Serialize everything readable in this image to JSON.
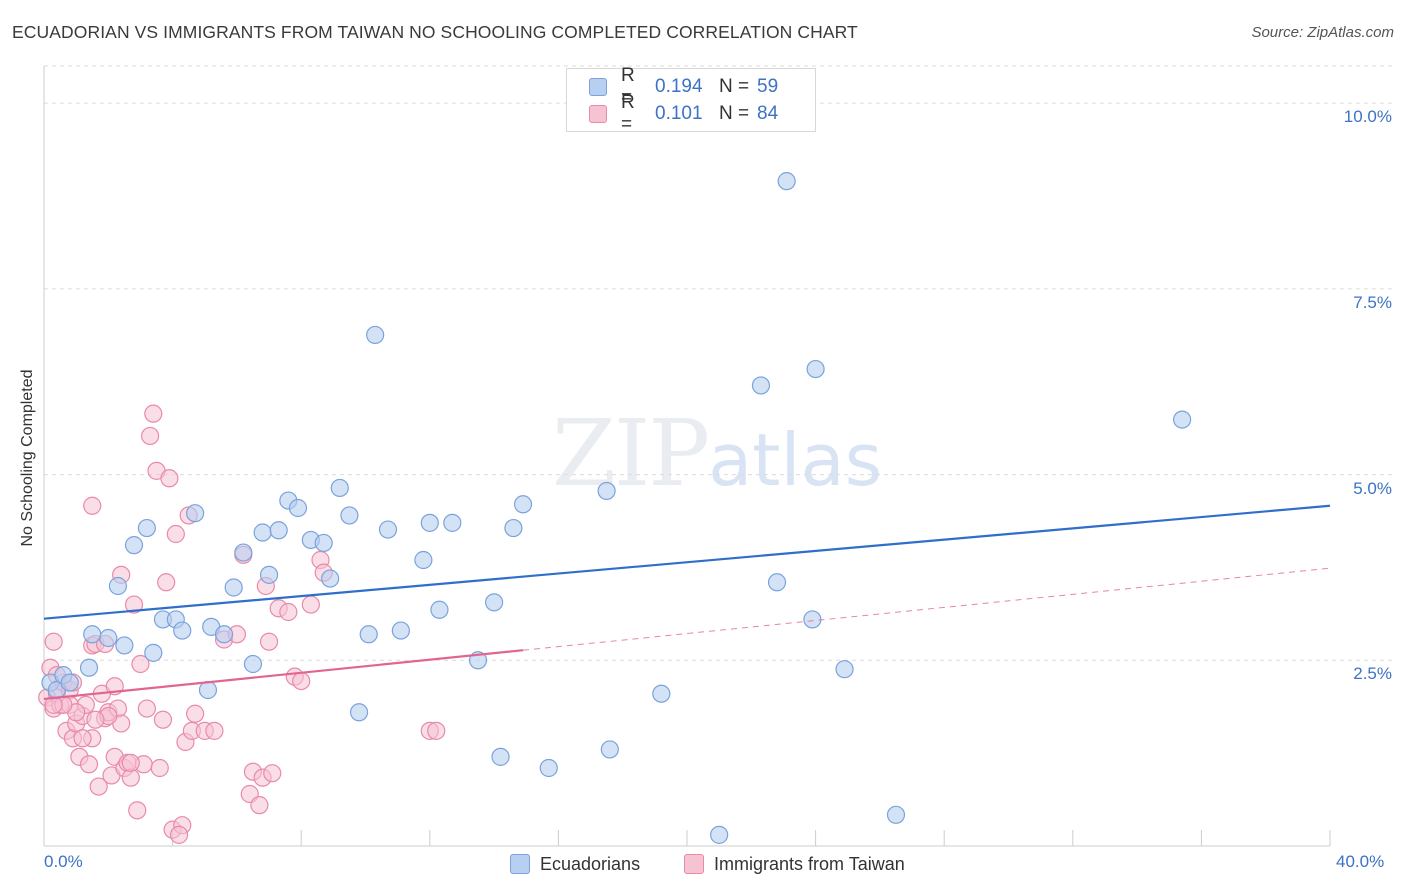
{
  "header": {
    "title": "ECUADORIAN VS IMMIGRANTS FROM TAIWAN NO SCHOOLING COMPLETED CORRELATION CHART",
    "source": "Source: ZipAtlas.com"
  },
  "watermark": {
    "zip": "ZIP",
    "atlas": "atlas"
  },
  "legend": {
    "rows": [
      {
        "r_label": "R =",
        "r_value": "0.194",
        "n_label": "N =",
        "n_value": "59"
      },
      {
        "r_label": "R =",
        "r_value": "0.101",
        "n_label": "N =",
        "n_value": "84"
      }
    ]
  },
  "bottom_legend": {
    "series1": "Ecuadorians",
    "series2": "Immigrants from Taiwan"
  },
  "colors": {
    "blue_fill": "#b7cff0",
    "blue_stroke": "#7aa3dc",
    "blue_line": "#2f6fcb",
    "pink_fill": "#f6c3d3",
    "pink_stroke": "#e98aa9",
    "pink_line": "#e06690",
    "tick_text": "#3d72c4",
    "grid": "#dcdcdc"
  },
  "chart_data": {
    "type": "scatter",
    "title": "ECUADORIAN VS IMMIGRANTS FROM TAIWAN NO SCHOOLING COMPLETED CORRELATION CHART",
    "xlabel": "",
    "ylabel": "No Schooling Completed",
    "xlim": [
      0,
      40
    ],
    "ylim": [
      0,
      10.5
    ],
    "x_tick_labels": [
      "0.0%",
      "40.0%"
    ],
    "y_ticks": [
      2.5,
      5.0,
      7.5,
      10.0
    ],
    "y_tick_labels": [
      "2.5%",
      "5.0%",
      "7.5%",
      "10.0%"
    ],
    "grid": "horizontal dashed",
    "legend_position": "top-center",
    "series": [
      {
        "name": "Ecuadorians",
        "color": "blue",
        "trend": {
          "x": [
            0,
            40
          ],
          "y": [
            3.06,
            4.58
          ],
          "style": "solid"
        },
        "points": [
          [
            0.2,
            2.2
          ],
          [
            0.4,
            2.1
          ],
          [
            0.6,
            2.3
          ],
          [
            0.8,
            2.2
          ],
          [
            1.4,
            2.4
          ],
          [
            1.5,
            2.85
          ],
          [
            2.0,
            2.8
          ],
          [
            2.3,
            3.5
          ],
          [
            2.5,
            2.7
          ],
          [
            2.8,
            4.05
          ],
          [
            3.2,
            4.28
          ],
          [
            3.4,
            2.6
          ],
          [
            3.7,
            3.05
          ],
          [
            4.1,
            3.05
          ],
          [
            4.3,
            2.9
          ],
          [
            4.7,
            4.48
          ],
          [
            5.1,
            2.1
          ],
          [
            5.2,
            2.95
          ],
          [
            5.6,
            2.85
          ],
          [
            5.9,
            3.48
          ],
          [
            6.2,
            3.95
          ],
          [
            6.5,
            2.45
          ],
          [
            6.8,
            4.22
          ],
          [
            7.0,
            3.65
          ],
          [
            7.3,
            4.25
          ],
          [
            7.6,
            4.65
          ],
          [
            7.9,
            4.55
          ],
          [
            8.3,
            4.12
          ],
          [
            8.7,
            4.08
          ],
          [
            8.9,
            3.6
          ],
          [
            9.2,
            4.82
          ],
          [
            9.5,
            4.45
          ],
          [
            9.8,
            1.8
          ],
          [
            10.1,
            2.85
          ],
          [
            10.3,
            6.88
          ],
          [
            10.7,
            4.26
          ],
          [
            11.1,
            2.9
          ],
          [
            11.8,
            3.85
          ],
          [
            12.0,
            4.35
          ],
          [
            12.3,
            3.18
          ],
          [
            12.7,
            4.35
          ],
          [
            13.5,
            2.5
          ],
          [
            14.0,
            3.28
          ],
          [
            14.2,
            1.2
          ],
          [
            14.6,
            4.28
          ],
          [
            14.9,
            4.6
          ],
          [
            15.7,
            1.05
          ],
          [
            17.5,
            4.78
          ],
          [
            17.6,
            1.3
          ],
          [
            19.2,
            2.05
          ],
          [
            21.0,
            0.15
          ],
          [
            22.3,
            6.2
          ],
          [
            22.8,
            3.55
          ],
          [
            23.1,
            8.95
          ],
          [
            23.9,
            3.05
          ],
          [
            24.0,
            6.42
          ],
          [
            24.9,
            2.38
          ],
          [
            26.5,
            0.42
          ],
          [
            35.4,
            5.74
          ]
        ]
      },
      {
        "name": "Immigrants from Taiwan",
        "color": "pink",
        "trend": {
          "x": [
            0,
            40
          ],
          "y": [
            1.98,
            3.74
          ],
          "style": "solid to 14.9, dashed beyond",
          "solid_until": 14.9
        },
        "points": [
          [
            0.1,
            2.0
          ],
          [
            0.2,
            2.4
          ],
          [
            0.3,
            1.85
          ],
          [
            0.3,
            2.75
          ],
          [
            0.4,
            2.05
          ],
          [
            0.5,
            1.9
          ],
          [
            0.6,
            2.2
          ],
          [
            0.7,
            1.55
          ],
          [
            0.8,
            2.1
          ],
          [
            0.9,
            1.45
          ],
          [
            1.0,
            1.65
          ],
          [
            1.1,
            1.2
          ],
          [
            1.2,
            1.75
          ],
          [
            1.3,
            1.9
          ],
          [
            1.4,
            1.1
          ],
          [
            1.5,
            1.45
          ],
          [
            1.5,
            2.7
          ],
          [
            1.6,
            2.72
          ],
          [
            1.7,
            0.8
          ],
          [
            1.8,
            2.05
          ],
          [
            1.9,
            1.72
          ],
          [
            2.0,
            1.8
          ],
          [
            2.1,
            0.95
          ],
          [
            2.2,
            1.2
          ],
          [
            2.3,
            1.85
          ],
          [
            2.4,
            1.65
          ],
          [
            2.5,
            1.05
          ],
          [
            2.6,
            1.12
          ],
          [
            2.7,
            0.92
          ],
          [
            2.9,
            0.48
          ],
          [
            3.0,
            2.45
          ],
          [
            3.1,
            1.1
          ],
          [
            3.2,
            1.85
          ],
          [
            3.3,
            5.52
          ],
          [
            3.4,
            5.82
          ],
          [
            3.5,
            5.05
          ],
          [
            3.7,
            1.7
          ],
          [
            3.8,
            3.55
          ],
          [
            3.9,
            4.95
          ],
          [
            4.0,
            0.22
          ],
          [
            4.1,
            4.2
          ],
          [
            4.3,
            0.28
          ],
          [
            4.4,
            1.4
          ],
          [
            4.5,
            4.45
          ],
          [
            4.6,
            1.55
          ],
          [
            4.7,
            1.78
          ],
          [
            5.0,
            1.55
          ],
          [
            5.3,
            1.55
          ],
          [
            5.6,
            2.78
          ],
          [
            6.0,
            2.85
          ],
          [
            6.2,
            3.92
          ],
          [
            6.4,
            0.7
          ],
          [
            6.5,
            1.0
          ],
          [
            6.7,
            0.55
          ],
          [
            6.8,
            0.92
          ],
          [
            6.9,
            3.5
          ],
          [
            7.0,
            2.75
          ],
          [
            7.1,
            0.98
          ],
          [
            7.3,
            3.2
          ],
          [
            7.6,
            3.15
          ],
          [
            7.8,
            2.28
          ],
          [
            8.0,
            2.22
          ],
          [
            8.3,
            3.25
          ],
          [
            8.6,
            3.85
          ],
          [
            8.7,
            3.68
          ],
          [
            12.0,
            1.55
          ],
          [
            12.2,
            1.55
          ],
          [
            1.5,
            4.58
          ],
          [
            0.8,
            1.9
          ],
          [
            2.2,
            2.15
          ],
          [
            1.2,
            1.45
          ],
          [
            0.4,
            2.3
          ],
          [
            2.0,
            1.75
          ],
          [
            3.6,
            1.05
          ],
          [
            2.8,
            3.25
          ],
          [
            1.0,
            1.8
          ],
          [
            0.6,
            1.9
          ],
          [
            2.4,
            3.65
          ],
          [
            1.9,
            2.72
          ],
          [
            4.2,
            0.15
          ],
          [
            0.9,
            2.2
          ],
          [
            2.7,
            1.12
          ],
          [
            1.6,
            1.7
          ],
          [
            0.3,
            1.9
          ]
        ]
      }
    ]
  }
}
